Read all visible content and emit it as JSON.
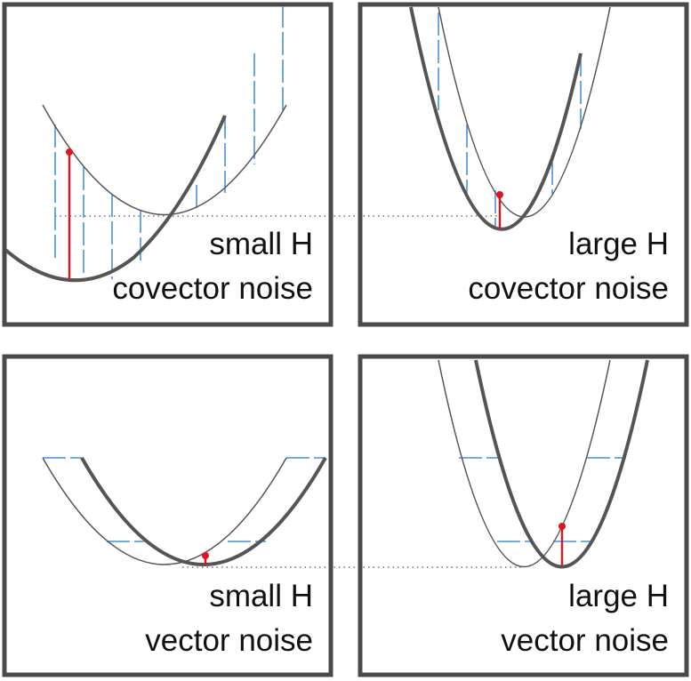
{
  "panels": [
    {
      "id": "small-h-covector",
      "line1": "small H",
      "line2": "covector noise"
    },
    {
      "id": "large-h-covector",
      "line1": "large H",
      "line2": "covector noise"
    },
    {
      "id": "small-h-vector",
      "line1": "small H",
      "line2": "vector noise"
    },
    {
      "id": "large-h-vector",
      "line1": "large H",
      "line2": "vector noise"
    }
  ],
  "colors": {
    "frame": "#4a4a4a",
    "curve": "#555555",
    "noise": "#4a90d9",
    "highlight": "#e0141e",
    "dotted": "#555555"
  }
}
